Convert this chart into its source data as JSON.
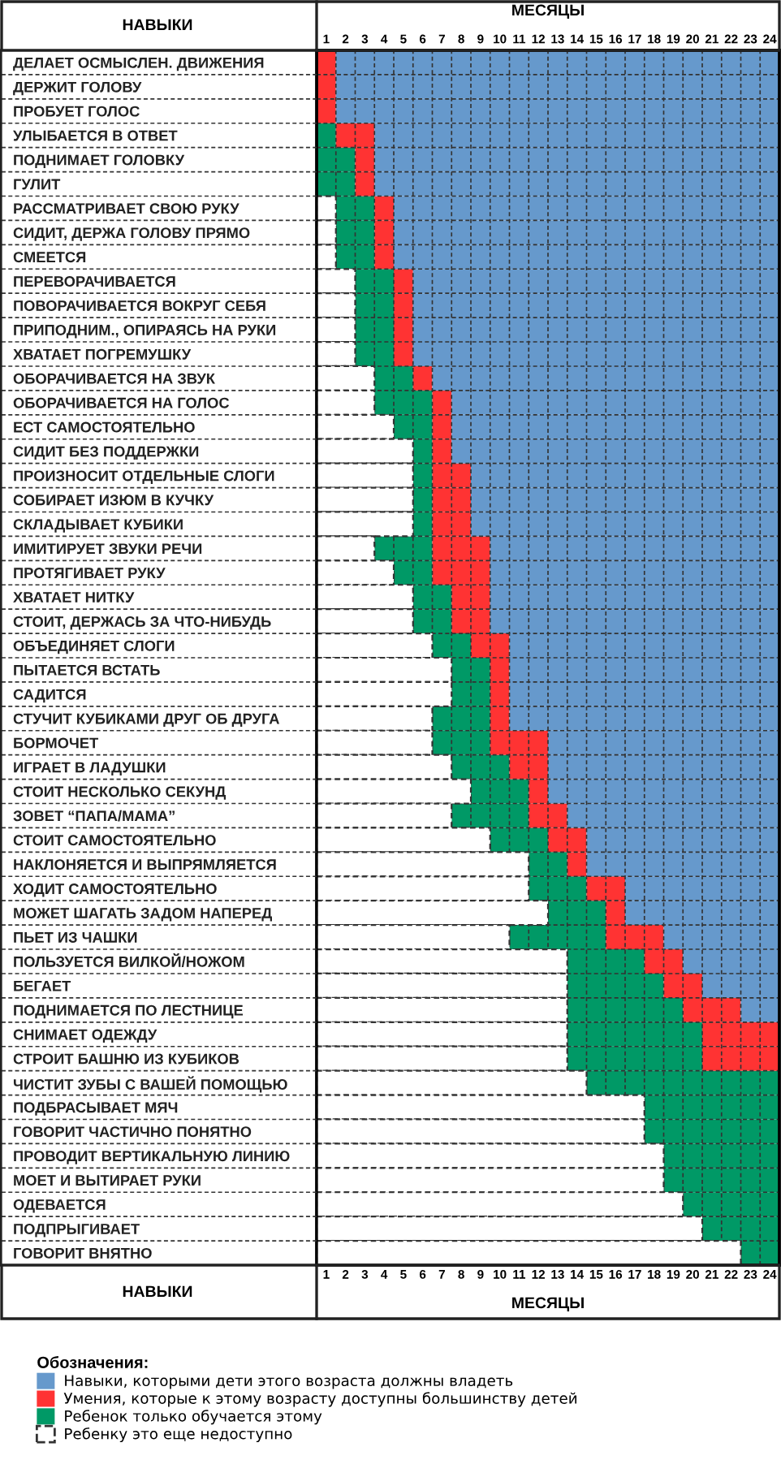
{
  "chart_data": {
    "type": "bar",
    "orientation": "horizontal",
    "stacked": true,
    "ylabel": "НАВЫКИ",
    "xlabel": "МЕСЯЦЫ",
    "x2label": "МЕСЯЦЫ",
    "annotations": [
      "НАВЫКИ"
    ],
    "legend_title": "Обозначения:",
    "legend": "bottom",
    "grid": true,
    "categories": [
      "ДЕЛАЕТ ОСМЫСЛЕН. ДВИЖЕНИЯ",
      "ДЕРЖИТ ГОЛОВУ",
      "ПРОБУЕТ ГОЛОС",
      "УЛЫБАЕТСЯ В ОТВЕТ",
      "ПОДНИМАЕТ ГОЛОВКУ",
      "ГУЛИТ",
      "РАССМАТРИВАЕТ СВОЮ РУКУ",
      "СИДИТ, ДЕРЖА ГОЛОВУ ПРЯМО",
      "СМЕЕТСЯ",
      "ПЕРЕВОРАЧИВАЕТСЯ",
      "ПОВОРАЧИВАЕТСЯ ВОКРУГ СЕБЯ",
      "ПРИПОДНИМ., ОПИРАЯСЬ НА РУКИ",
      "ХВАТАЕТ ПОГРЕМУШКУ",
      "ОБОРАЧИВАЕТСЯ НА ЗВУК",
      "ОБОРАЧИВАЕТСЯ НА ГОЛОС",
      "ЕСТ САМОСТОЯТЕЛЬНО",
      "СИДИТ БЕЗ ПОДДЕРЖКИ",
      "ПРОИЗНОСИТ ОТДЕЛЬНЫЕ СЛОГИ",
      "СОБИРАЕТ ИЗЮМ В КУЧКУ",
      "СКЛАДЫВАЕТ КУБИКИ",
      "ИМИТИРУЕТ ЗВУКИ РЕЧИ",
      "ПРОТЯГИВАЕТ РУКУ",
      "ХВАТАЕТ НИТКУ",
      "СТОИТ, ДЕРЖАСЬ ЗА ЧТО-НИБУДЬ",
      "ОБЪЕДИНЯЕТ СЛОГИ",
      "ПЫТАЕТСЯ ВСТАТЬ",
      "САДИТСЯ",
      "СТУЧИТ КУБИКАМИ ДРУГ ОБ ДРУГА",
      "БОРМОЧЕТ",
      "ИГРАЕТ В ЛАДУШКИ",
      "СТОИТ НЕСКОЛЬКО СЕКУНД",
      "ЗОВЕТ “ПАПА/МАМА”",
      "СТОИТ САМОСТОЯТЕЛЬНО",
      "НАКЛОНЯЕТСЯ И ВЫПРЯМЛЯЕТСЯ",
      "ХОДИТ САМОСТОЯТЕЛЬНО",
      "МОЖЕТ ШАГАТЬ ЗАДОМ НАПЕРЕД",
      "ПЬЕТ ИЗ ЧАШКИ",
      "ПОЛЬЗУЕТСЯ ВИЛКОЙ/НОЖОМ",
      "БЕГАЕТ",
      "ПОДНИМАЕТСЯ ПО ЛЕСТНИЦЕ",
      "СНИМАЕТ ОДЕЖДУ",
      "СТРОИТ БАШНЮ ИЗ КУБИКОВ",
      "ЧИСТИТ ЗУБЫ С ВАШЕЙ ПОМОЩЬЮ",
      "ПОДБРАСЫВАЕТ МЯЧ",
      "ГОВОРИТ ЧАСТИЧНО ПОНЯТНО",
      "ПРОВОДИТ ВЕРТИКАЛЬНУЮ ЛИНИЮ",
      "МОЕТ И ВЫТИРАЕТ РУКИ",
      "ОДЕВАЕТСЯ",
      "ПОДПРЫГИВАЕТ",
      "ГОВОРИТ ВНЯТНО"
    ],
    "series": [
      {
        "name": "Ребенку это еще недоступно",
        "color": "#ffffff",
        "line_style": "dashed",
        "values": [
          0,
          0,
          0,
          0,
          0,
          0,
          1,
          1,
          1,
          2,
          2,
          2,
          2,
          3,
          3,
          4,
          5,
          5,
          5,
          5,
          3,
          4,
          5,
          5,
          6,
          7,
          7,
          6,
          6,
          7,
          8,
          7,
          9,
          11,
          11,
          12,
          10,
          13,
          13,
          13,
          13,
          13,
          14,
          17,
          17,
          18,
          18,
          19,
          20,
          22
        ]
      },
      {
        "name": "Ребенок только обучается этому",
        "color": "#009966",
        "values": [
          0,
          0,
          0,
          1,
          2,
          2,
          2,
          2,
          2,
          2,
          2,
          2,
          2,
          2,
          3,
          2,
          1,
          1,
          1,
          1,
          3,
          2,
          2,
          2,
          2,
          2,
          2,
          3,
          3,
          3,
          3,
          4,
          3,
          2,
          3,
          3,
          5,
          4,
          5,
          6,
          7,
          7,
          10,
          7,
          7,
          6,
          6,
          5,
          4,
          2
        ]
      },
      {
        "name": "Умения, которые к этому возрасту доступны большинству детей",
        "color": "#ff3333",
        "values": [
          1,
          1,
          1,
          2,
          1,
          1,
          1,
          1,
          1,
          1,
          1,
          1,
          1,
          1,
          1,
          1,
          1,
          2,
          2,
          2,
          3,
          3,
          2,
          2,
          2,
          1,
          1,
          1,
          3,
          2,
          1,
          2,
          2,
          1,
          2,
          1,
          3,
          2,
          2,
          3,
          4,
          4,
          0,
          0,
          0,
          0,
          0,
          0,
          0,
          0
        ]
      },
      {
        "name": "Навыки, которыми дети этого возраста должны владеть",
        "color": "#6699cc",
        "values": [
          23,
          23,
          23,
          21,
          21,
          21,
          20,
          20,
          20,
          19,
          19,
          19,
          19,
          18,
          17,
          17,
          17,
          16,
          16,
          16,
          15,
          15,
          15,
          15,
          14,
          14,
          14,
          14,
          12,
          12,
          12,
          11,
          10,
          10,
          8,
          8,
          6,
          5,
          4,
          2,
          0,
          0,
          0,
          0,
          0,
          0,
          0,
          0,
          0,
          0
        ]
      }
    ],
    "xlim": [
      0,
      24
    ],
    "xticks": [
      {
        "value": 0.5,
        "label": "1"
      },
      {
        "value": 1.5,
        "label": "2"
      },
      {
        "value": 2.5,
        "label": "3"
      },
      {
        "value": 3.5,
        "label": "4"
      },
      {
        "value": 4.5,
        "label": "5"
      },
      {
        "value": 5.5,
        "label": "6"
      },
      {
        "value": 6.5,
        "label": "7"
      },
      {
        "value": 7.5,
        "label": "8"
      },
      {
        "value": 8.5,
        "label": "9"
      },
      {
        "value": 9.5,
        "label": "10"
      },
      {
        "value": 10.5,
        "label": "11"
      },
      {
        "value": 11.5,
        "label": "12"
      },
      {
        "value": 12.5,
        "label": "13"
      },
      {
        "value": 13.5,
        "label": "14"
      },
      {
        "value": 14.5,
        "label": "15"
      },
      {
        "value": 15.5,
        "label": "16"
      },
      {
        "value": 16.5,
        "label": "17"
      },
      {
        "value": 17.5,
        "label": "18"
      },
      {
        "value": 18.5,
        "label": "19"
      },
      {
        "value": 19.5,
        "label": "20"
      },
      {
        "value": 20.5,
        "label": "21"
      },
      {
        "value": 21.5,
        "label": "22"
      },
      {
        "value": 22.5,
        "label": "23"
      },
      {
        "value": 23.5,
        "label": "24"
      }
    ],
    "x2lim": [
      0,
      24
    ],
    "x2ticks": [
      {
        "value": 0.5,
        "label": "1"
      },
      {
        "value": 1.5,
        "label": "2"
      },
      {
        "value": 2.5,
        "label": "3"
      },
      {
        "value": 3.5,
        "label": "4"
      },
      {
        "value": 4.5,
        "label": "5"
      },
      {
        "value": 5.5,
        "label": "6"
      },
      {
        "value": 6.5,
        "label": "7"
      },
      {
        "value": 7.5,
        "label": "8"
      },
      {
        "value": 8.5,
        "label": "9"
      },
      {
        "value": 9.5,
        "label": "10"
      },
      {
        "value": 10.5,
        "label": "11"
      },
      {
        "value": 11.5,
        "label": "12"
      },
      {
        "value": 12.5,
        "label": "13"
      },
      {
        "value": 13.5,
        "label": "14"
      },
      {
        "value": 14.5,
        "label": "15"
      },
      {
        "value": 15.5,
        "label": "16"
      },
      {
        "value": 16.5,
        "label": "17"
      },
      {
        "value": 17.5,
        "label": "18"
      },
      {
        "value": 18.5,
        "label": "19"
      },
      {
        "value": 19.5,
        "label": "20"
      },
      {
        "value": 20.5,
        "label": "21"
      },
      {
        "value": 21.5,
        "label": "22"
      },
      {
        "value": 22.5,
        "label": "23"
      },
      {
        "value": 23.5,
        "label": "24"
      }
    ]
  }
}
